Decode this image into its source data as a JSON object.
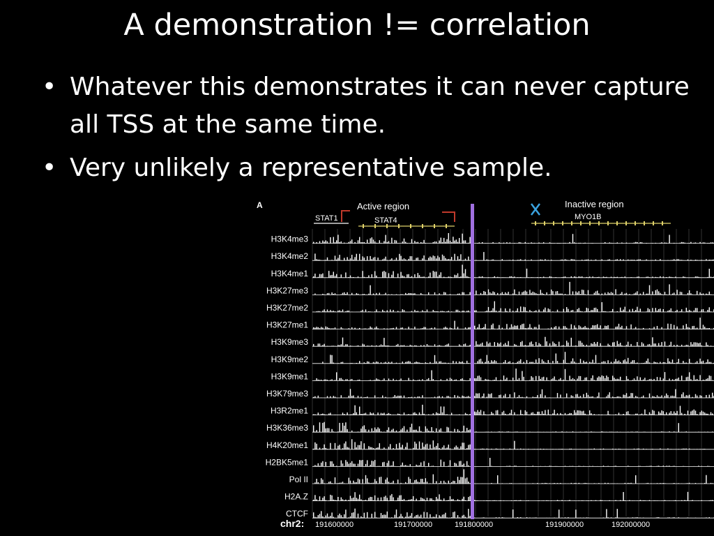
{
  "slide": {
    "title": "A demonstration != correlation",
    "bullets": [
      "Whatever this demonstrates it can never capture all TSS at the same time.",
      "Very unlikely a representative sample."
    ]
  },
  "figure": {
    "panel_label": "A",
    "active_region_label": "Active region",
    "inactive_region_label": "Inactive region",
    "genes": [
      "STAT1",
      "STAT4",
      "MYO1B"
    ],
    "tracks": [
      "H3K4me3",
      "H3K4me2",
      "H3K4me1",
      "H3K27me3",
      "H3K27me2",
      "H3K27me1",
      "H3K9me3",
      "H3K9me2",
      "H3K9me1",
      "H3K79me3",
      "H3R2me1",
      "H3K36me3",
      "H4K20me1",
      "H2BK5me1",
      "Pol II",
      "H2A.Z",
      "CTCF"
    ],
    "axis_label": "chr2:",
    "ticks": [
      "191600000",
      "191700000",
      "191800000",
      "191900000",
      "192000000"
    ],
    "colors": {
      "active": "#3aa3e0",
      "inactive": "#3aa3e0",
      "marker": "#a070e0",
      "arrow": "#c0392b",
      "gene_active": "#e0d26a",
      "gene_inactive": "#e0d26a"
    }
  }
}
